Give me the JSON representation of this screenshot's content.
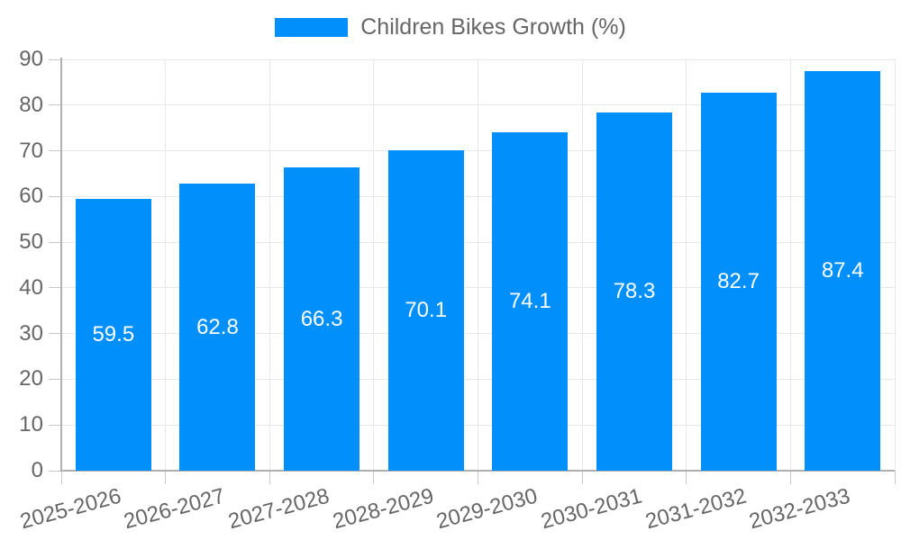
{
  "chart_data": {
    "type": "bar",
    "title": "",
    "legend": "Children Bikes Growth (%)",
    "legend_position": "top",
    "categories": [
      "2025-2026",
      "2026-2027",
      "2027-2028",
      "2028-2029",
      "2029-2030",
      "2030-2031",
      "2031-2032",
      "2032-2033"
    ],
    "series": [
      {
        "name": "Children Bikes Growth (%)",
        "values": [
          59.5,
          62.8,
          66.3,
          70.1,
          74.1,
          78.3,
          82.7,
          87.4
        ]
      }
    ],
    "value_labels": "inside-center, one decimal, white",
    "xlabel": "",
    "ylabel": "",
    "ylim": [
      0,
      90
    ],
    "yticks": [
      0,
      10,
      20,
      30,
      40,
      50,
      60,
      70,
      80,
      90
    ],
    "grid": "horizontal and vertical light gridlines",
    "x_tick_label_rotation_deg": -15
  },
  "colors": {
    "bar": "#008FFB",
    "value_label": "#ffffff",
    "axis_text": "#666666",
    "grid_line": "#e8e8e8",
    "axis_line": "#b0b0b0",
    "tick_mark": "#c9c9c9",
    "background": "#ffffff"
  }
}
